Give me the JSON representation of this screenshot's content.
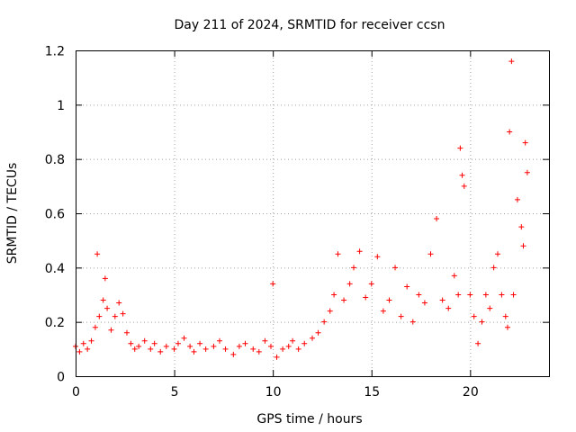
{
  "chart_data": {
    "type": "scatter",
    "title": "Day 211 of 2024, SRMTID for receiver ccsn",
    "xlabel": "GPS time / hours",
    "ylabel": "SRMTID / TECUs",
    "xlim": [
      0,
      24
    ],
    "ylim": [
      0,
      1.2
    ],
    "xticks": [
      "0",
      "5",
      "10",
      "15",
      "20"
    ],
    "yticks": [
      "0",
      "0.2",
      "0.4",
      "0.6",
      "0.8",
      "1",
      "1.2"
    ],
    "grid": true,
    "marker": "+",
    "color": "#ff0000",
    "series": [
      {
        "name": "SRMTID",
        "x": [
          0.0,
          0.2,
          0.4,
          0.6,
          0.8,
          1.0,
          1.1,
          1.2,
          1.4,
          1.5,
          1.6,
          1.8,
          2.0,
          2.2,
          2.4,
          2.6,
          2.8,
          3.0,
          3.2,
          3.5,
          3.8,
          4.0,
          4.3,
          4.6,
          5.0,
          5.2,
          5.5,
          5.8,
          6.0,
          6.3,
          6.6,
          7.0,
          7.3,
          7.6,
          8.0,
          8.3,
          8.6,
          9.0,
          9.3,
          9.6,
          9.9,
          10.0,
          10.2,
          10.5,
          10.8,
          11.0,
          11.3,
          11.6,
          12.0,
          12.3,
          12.6,
          12.9,
          13.1,
          13.3,
          13.6,
          13.9,
          14.1,
          14.4,
          14.7,
          15.0,
          15.3,
          15.6,
          15.9,
          16.2,
          16.5,
          16.8,
          17.1,
          17.4,
          17.7,
          18.0,
          18.3,
          18.6,
          18.9,
          19.2,
          19.4,
          19.5,
          19.6,
          19.7,
          20.0,
          20.2,
          20.4,
          20.6,
          20.8,
          21.0,
          21.2,
          21.4,
          21.6,
          21.8,
          21.9,
          22.0,
          22.1,
          22.2,
          22.4,
          22.6,
          22.7,
          22.8,
          22.9
        ],
        "y": [
          0.11,
          0.09,
          0.12,
          0.1,
          0.13,
          0.18,
          0.45,
          0.22,
          0.28,
          0.36,
          0.25,
          0.17,
          0.22,
          0.27,
          0.23,
          0.16,
          0.12,
          0.1,
          0.11,
          0.13,
          0.1,
          0.12,
          0.09,
          0.11,
          0.1,
          0.12,
          0.14,
          0.11,
          0.09,
          0.12,
          0.1,
          0.11,
          0.13,
          0.1,
          0.08,
          0.11,
          0.12,
          0.1,
          0.09,
          0.13,
          0.11,
          0.34,
          0.07,
          0.1,
          0.11,
          0.13,
          0.1,
          0.12,
          0.14,
          0.16,
          0.2,
          0.24,
          0.3,
          0.45,
          0.28,
          0.34,
          0.4,
          0.46,
          0.29,
          0.34,
          0.44,
          0.24,
          0.28,
          0.4,
          0.22,
          0.33,
          0.2,
          0.3,
          0.27,
          0.45,
          0.58,
          0.28,
          0.25,
          0.37,
          0.3,
          0.84,
          0.74,
          0.7,
          0.3,
          0.22,
          0.12,
          0.2,
          0.3,
          0.25,
          0.4,
          0.45,
          0.3,
          0.22,
          0.18,
          0.9,
          1.16,
          0.3,
          0.65,
          0.55,
          0.48,
          0.86,
          0.75
        ]
      }
    ]
  }
}
